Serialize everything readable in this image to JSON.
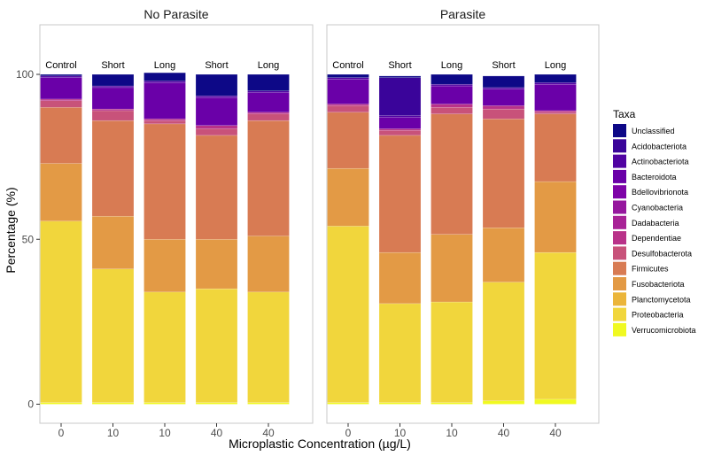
{
  "chart_data": {
    "type": "bar",
    "stacked": true,
    "xlabel": "Microplastic Concentration (µg/L)",
    "ylabel": "Percentage (%)",
    "ylim": [
      0,
      100
    ],
    "yticks": [
      0,
      50,
      100
    ],
    "grid": false,
    "legend_title": "Taxa",
    "legend_position": "right",
    "taxa": [
      {
        "name": "Unclassified",
        "color": "#0d0887"
      },
      {
        "name": "Acidobacteriota",
        "color": "#3a049a"
      },
      {
        "name": "Actinobacteriota",
        "color": "#5002a2"
      },
      {
        "name": "Bacteroidota",
        "color": "#6a00a8"
      },
      {
        "name": "Bdellovibrionota",
        "color": "#7e03a8"
      },
      {
        "name": "Cyanobacteria",
        "color": "#96179e"
      },
      {
        "name": "Dadabacteria",
        "color": "#a82296"
      },
      {
        "name": "Dependentiae",
        "color": "#b93289"
      },
      {
        "name": "Desulfobacterota",
        "color": "#c8527a"
      },
      {
        "name": "Firmicutes",
        "color": "#d87b53"
      },
      {
        "name": "Fusobacteriota",
        "color": "#e39a45"
      },
      {
        "name": "Planctomycetota",
        "color": "#ebb53a"
      },
      {
        "name": "Proteobacteria",
        "color": "#f1d63c"
      },
      {
        "name": "Verrucomicrobiota",
        "color": "#f0f921"
      }
    ],
    "facets": [
      {
        "title": "No Parasite",
        "bars": [
          {
            "label": "Control",
            "x": "0",
            "values": [
              0.5,
              0,
              0.5,
              6.5,
              0,
              0,
              0,
              0.5,
              2,
              17,
              17.5,
              0,
              55,
              0.5
            ]
          },
          {
            "label": "Short",
            "x": "10",
            "values": [
              3.5,
              0,
              0.5,
              6.5,
              0,
              0,
              0,
              0.5,
              3,
              29,
              16,
              0,
              40.5,
              0.5
            ]
          },
          {
            "label": "Long",
            "x": "10",
            "values": [
              2.5,
              0,
              0.5,
              11,
              0,
              0,
              0,
              0.5,
              1,
              35,
              16,
              0,
              33.5,
              0.5
            ]
          },
          {
            "label": "Short",
            "x": "40",
            "values": [
              6.5,
              0,
              0.5,
              8.5,
              0,
              0,
              0,
              1,
              2,
              31.5,
              15,
              0,
              34.5,
              0.5
            ]
          },
          {
            "label": "Long",
            "x": "40",
            "values": [
              5,
              0,
              0.5,
              6,
              0,
              0,
              0,
              0.5,
              2,
              35,
              17,
              0,
              33.5,
              0.5
            ]
          }
        ]
      },
      {
        "title": "Parasite",
        "bars": [
          {
            "label": "Control",
            "x": "0",
            "values": [
              1,
              0,
              0.5,
              7.5,
              0,
              0,
              0,
              0.5,
              2,
              17,
              17.5,
              0,
              53.5,
              0.5
            ]
          },
          {
            "label": "Short",
            "x": "10",
            "values": [
              0.5,
              11.5,
              0.5,
              3.5,
              0,
              0,
              0,
              0.5,
              1.5,
              35.5,
              15.5,
              0,
              30,
              0.5
            ]
          },
          {
            "label": "Long",
            "x": "10",
            "values": [
              3,
              0,
              0.5,
              5.5,
              0,
              0,
              0,
              1,
              2,
              36.5,
              20.5,
              0,
              30.5,
              0.5
            ]
          },
          {
            "label": "Short",
            "x": "40",
            "values": [
              3.5,
              0,
              0.5,
              5,
              0,
              0,
              0,
              1,
              3,
              33,
              16.5,
              0,
              36,
              1
            ]
          },
          {
            "label": "Long",
            "x": "40",
            "values": [
              2.5,
              0,
              0.5,
              8,
              0,
              0,
              0,
              0.5,
              0.5,
              20.5,
              21.5,
              0,
              44.5,
              1.5
            ]
          }
        ]
      }
    ]
  }
}
